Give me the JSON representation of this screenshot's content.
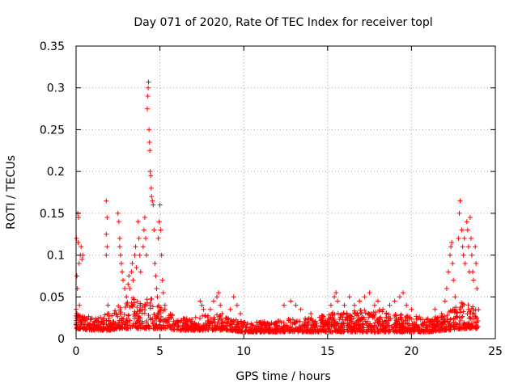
{
  "chart_data": {
    "type": "scatter",
    "title": "Day 071 of 2020, Rate Of TEC Index for receiver topl",
    "xlabel": "GPS time / hours",
    "ylabel": "ROTI / TECUs",
    "xlim": [
      0,
      25
    ],
    "ylim": [
      0,
      0.35
    ],
    "x_ticks": [
      "0",
      "5",
      "10",
      "15",
      "20",
      "25"
    ],
    "y_ticks": [
      "0",
      "0.05",
      "0.1",
      "0.15",
      "0.2",
      "0.25",
      "0.3",
      "0.35"
    ],
    "x_tick_values": [
      0,
      5,
      10,
      15,
      20,
      25
    ],
    "y_tick_values": [
      0,
      0.05,
      0.1,
      0.15,
      0.2,
      0.25,
      0.3,
      0.35
    ],
    "grid": true,
    "marker": "+",
    "series": [
      {
        "color": "#ff0000",
        "points": [
          [
            0.0,
            0.035
          ],
          [
            0.02,
            0.12
          ],
          [
            0.05,
            0.075
          ],
          [
            0.08,
            0.06
          ],
          [
            0.1,
            0.15
          ],
          [
            0.12,
            0.115
          ],
          [
            0.15,
            0.145
          ],
          [
            0.18,
            0.09
          ],
          [
            0.2,
            0.04
          ],
          [
            0.25,
            0.1
          ],
          [
            0.3,
            0.11
          ],
          [
            0.35,
            0.095
          ],
          [
            0.4,
            0.1
          ],
          [
            0.05,
            0.03
          ],
          [
            0.1,
            0.025
          ],
          [
            0.15,
            0.02
          ],
          [
            1.8,
            0.165
          ],
          [
            1.85,
            0.145
          ],
          [
            1.8,
            0.125
          ],
          [
            1.85,
            0.11
          ],
          [
            1.8,
            0.1
          ],
          [
            1.9,
            0.04
          ],
          [
            1.95,
            0.03
          ],
          [
            2.5,
            0.15
          ],
          [
            2.55,
            0.14
          ],
          [
            2.6,
            0.12
          ],
          [
            2.65,
            0.1
          ],
          [
            2.7,
            0.09
          ],
          [
            2.75,
            0.08
          ],
          [
            2.8,
            0.07
          ],
          [
            2.6,
            0.11
          ],
          [
            2.9,
            0.06
          ],
          [
            3.0,
            0.05
          ],
          [
            3.1,
            0.065
          ],
          [
            3.15,
            0.075
          ],
          [
            3.2,
            0.06
          ],
          [
            3.3,
            0.08
          ],
          [
            3.35,
            0.09
          ],
          [
            3.4,
            0.07
          ],
          [
            3.5,
            0.1
          ],
          [
            3.55,
            0.11
          ],
          [
            3.6,
            0.085
          ],
          [
            3.7,
            0.14
          ],
          [
            3.75,
            0.12
          ],
          [
            3.8,
            0.1
          ],
          [
            3.85,
            0.08
          ],
          [
            4.0,
            0.11
          ],
          [
            4.05,
            0.13
          ],
          [
            4.1,
            0.145
          ],
          [
            4.15,
            0.12
          ],
          [
            4.2,
            0.1
          ],
          [
            4.25,
            0.275
          ],
          [
            4.28,
            0.29
          ],
          [
            4.3,
            0.3
          ],
          [
            4.32,
            0.307
          ],
          [
            4.35,
            0.25
          ],
          [
            4.38,
            0.235
          ],
          [
            4.4,
            0.225
          ],
          [
            4.42,
            0.2
          ],
          [
            4.45,
            0.195
          ],
          [
            4.48,
            0.18
          ],
          [
            4.5,
            0.17
          ],
          [
            4.55,
            0.165
          ],
          [
            4.6,
            0.16
          ],
          [
            4.65,
            0.13
          ],
          [
            4.7,
            0.09
          ],
          [
            4.75,
            0.075
          ],
          [
            4.8,
            0.06
          ],
          [
            4.85,
            0.05
          ],
          [
            4.9,
            0.12
          ],
          [
            4.95,
            0.14
          ],
          [
            5.0,
            0.16
          ],
          [
            5.05,
            0.13
          ],
          [
            5.1,
            0.1
          ],
          [
            5.15,
            0.07
          ],
          [
            5.2,
            0.055
          ],
          [
            5.3,
            0.04
          ],
          [
            7.4,
            0.045
          ],
          [
            7.5,
            0.04
          ],
          [
            7.6,
            0.035
          ],
          [
            8.0,
            0.035
          ],
          [
            8.2,
            0.045
          ],
          [
            8.4,
            0.05
          ],
          [
            8.5,
            0.055
          ],
          [
            8.6,
            0.04
          ],
          [
            8.7,
            0.03
          ],
          [
            9.2,
            0.035
          ],
          [
            9.4,
            0.05
          ],
          [
            9.6,
            0.04
          ],
          [
            9.8,
            0.03
          ],
          [
            12.4,
            0.04
          ],
          [
            12.8,
            0.045
          ],
          [
            13.1,
            0.04
          ],
          [
            13.4,
            0.035
          ],
          [
            14.0,
            0.03
          ],
          [
            15.2,
            0.04
          ],
          [
            15.4,
            0.05
          ],
          [
            15.5,
            0.055
          ],
          [
            15.6,
            0.045
          ],
          [
            16.0,
            0.04
          ],
          [
            16.3,
            0.05
          ],
          [
            16.6,
            0.04
          ],
          [
            16.9,
            0.045
          ],
          [
            17.2,
            0.05
          ],
          [
            17.5,
            0.055
          ],
          [
            17.8,
            0.04
          ],
          [
            18.0,
            0.045
          ],
          [
            18.3,
            0.035
          ],
          [
            18.7,
            0.04
          ],
          [
            19.0,
            0.045
          ],
          [
            19.3,
            0.05
          ],
          [
            19.5,
            0.055
          ],
          [
            19.7,
            0.04
          ],
          [
            20.0,
            0.035
          ],
          [
            21.4,
            0.035
          ],
          [
            21.8,
            0.03
          ],
          [
            22.0,
            0.045
          ],
          [
            22.1,
            0.06
          ],
          [
            22.2,
            0.08
          ],
          [
            22.3,
            0.1
          ],
          [
            22.35,
            0.11
          ],
          [
            22.4,
            0.115
          ],
          [
            22.45,
            0.09
          ],
          [
            22.5,
            0.07
          ],
          [
            22.6,
            0.05
          ],
          [
            22.8,
            0.12
          ],
          [
            22.85,
            0.15
          ],
          [
            22.9,
            0.165
          ],
          [
            23.0,
            0.13
          ],
          [
            23.05,
            0.11
          ],
          [
            23.1,
            0.1
          ],
          [
            23.15,
            0.12
          ],
          [
            23.2,
            0.09
          ],
          [
            23.3,
            0.14
          ],
          [
            23.35,
            0.13
          ],
          [
            23.4,
            0.11
          ],
          [
            23.45,
            0.08
          ],
          [
            23.5,
            0.145
          ],
          [
            23.55,
            0.12
          ],
          [
            23.6,
            0.1
          ],
          [
            23.65,
            0.08
          ],
          [
            23.7,
            0.07
          ],
          [
            23.8,
            0.11
          ],
          [
            23.85,
            0.09
          ],
          [
            23.9,
            0.06
          ]
        ],
        "baseline": {
          "x_range": [
            0,
            24
          ],
          "envelope": [
            [
              0.0,
              0.012,
              0.03
            ],
            [
              1.0,
              0.01,
              0.028
            ],
            [
              2.0,
              0.01,
              0.03
            ],
            [
              2.5,
              0.012,
              0.04
            ],
            [
              3.0,
              0.012,
              0.045
            ],
            [
              3.5,
              0.012,
              0.05
            ],
            [
              4.0,
              0.012,
              0.05
            ],
            [
              4.5,
              0.012,
              0.05
            ],
            [
              5.0,
              0.012,
              0.04
            ],
            [
              5.5,
              0.012,
              0.035
            ],
            [
              6.0,
              0.01,
              0.025
            ],
            [
              7.0,
              0.01,
              0.025
            ],
            [
              8.0,
              0.01,
              0.03
            ],
            [
              9.0,
              0.01,
              0.028
            ],
            [
              10.0,
              0.008,
              0.02
            ],
            [
              11.0,
              0.008,
              0.02
            ],
            [
              12.0,
              0.008,
              0.022
            ],
            [
              13.0,
              0.008,
              0.025
            ],
            [
              14.0,
              0.008,
              0.025
            ],
            [
              15.0,
              0.008,
              0.03
            ],
            [
              16.0,
              0.008,
              0.035
            ],
            [
              17.0,
              0.008,
              0.035
            ],
            [
              18.0,
              0.008,
              0.035
            ],
            [
              19.0,
              0.008,
              0.03
            ],
            [
              20.0,
              0.008,
              0.028
            ],
            [
              21.0,
              0.008,
              0.025
            ],
            [
              22.0,
              0.01,
              0.028
            ],
            [
              23.0,
              0.012,
              0.045
            ],
            [
              24.0,
              0.012,
              0.035
            ]
          ]
        }
      }
    ]
  }
}
